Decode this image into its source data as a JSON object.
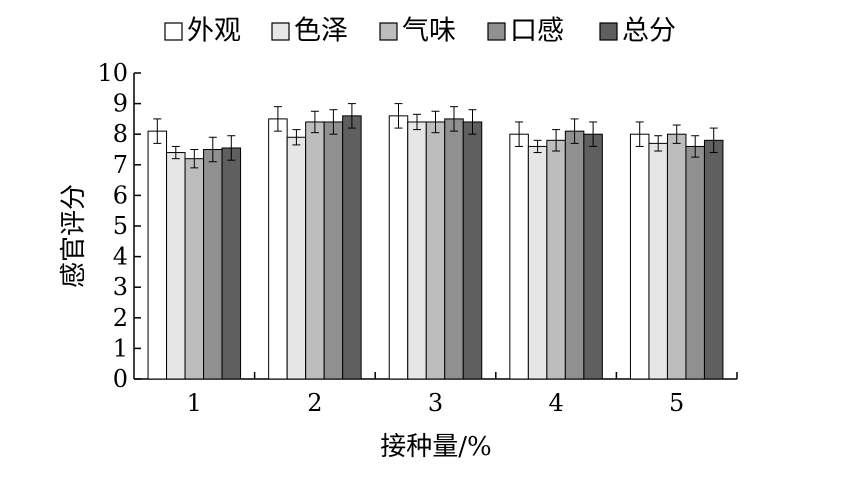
{
  "chart_data": {
    "type": "bar",
    "title": "",
    "xlabel": "接种量/%",
    "ylabel": "感官评分",
    "categories": [
      "1",
      "2",
      "3",
      "4",
      "5"
    ],
    "ylim": [
      0,
      10
    ],
    "yticks": [
      0,
      1,
      2,
      3,
      4,
      5,
      6,
      7,
      8,
      9,
      10
    ],
    "grid": false,
    "legend_position": "top",
    "error_bars": true,
    "series": [
      {
        "name": "外观",
        "color": "#ffffff",
        "values": [
          8.1,
          8.5,
          8.6,
          8.0,
          8.0
        ],
        "errors": [
          0.4,
          0.4,
          0.4,
          0.4,
          0.4
        ]
      },
      {
        "name": "色泽",
        "color": "#e6e6e6",
        "values": [
          7.4,
          7.9,
          8.4,
          7.6,
          7.7
        ],
        "errors": [
          0.2,
          0.25,
          0.25,
          0.2,
          0.25
        ]
      },
      {
        "name": "气味",
        "color": "#bdbdbd",
        "values": [
          7.2,
          8.4,
          8.4,
          7.8,
          8.0
        ],
        "errors": [
          0.3,
          0.35,
          0.35,
          0.35,
          0.3
        ]
      },
      {
        "name": "口感",
        "color": "#909090",
        "values": [
          7.5,
          8.4,
          8.5,
          8.1,
          7.6
        ],
        "errors": [
          0.4,
          0.4,
          0.4,
          0.4,
          0.35
        ]
      },
      {
        "name": "总分",
        "color": "#5f5f5f",
        "values": [
          7.55,
          8.6,
          8.4,
          8.0,
          7.8
        ],
        "errors": [
          0.4,
          0.4,
          0.4,
          0.4,
          0.4
        ]
      }
    ]
  }
}
